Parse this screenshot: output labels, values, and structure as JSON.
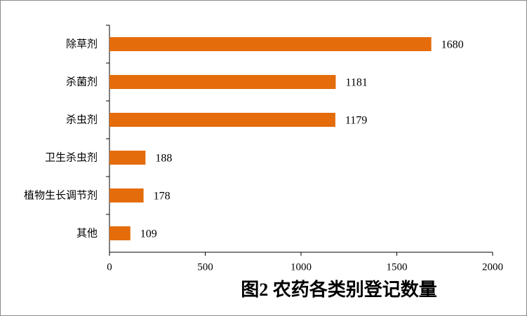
{
  "chart_data": {
    "type": "hbar",
    "title": "图2 农药各类别登记数量",
    "categories": [
      "除草剂",
      "杀菌剂",
      "杀虫剂",
      "卫生杀虫剂",
      "植物生长调节剂",
      "其他"
    ],
    "values": [
      1680,
      1181,
      1179,
      188,
      178,
      109
    ],
    "color": "#e46c0a",
    "xlim": [
      0,
      2000
    ],
    "xticks": [
      0,
      500,
      1000,
      1500,
      2000
    ]
  }
}
